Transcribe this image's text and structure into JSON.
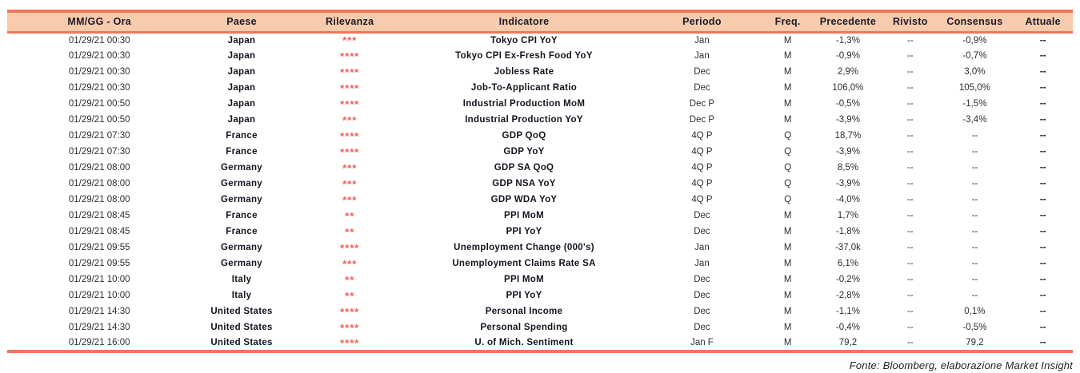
{
  "colors": {
    "border": "#f2765b",
    "header_bg": "#f8cbad",
    "star": "#f85c4f"
  },
  "table": {
    "columns": [
      {
        "key": "datetime",
        "label": "MM/GG - Ora"
      },
      {
        "key": "country",
        "label": "Paese"
      },
      {
        "key": "relevance",
        "label": "Rilevanza"
      },
      {
        "key": "indicator",
        "label": "Indicatore"
      },
      {
        "key": "period",
        "label": "Periodo"
      },
      {
        "key": "freq",
        "label": "Freq."
      },
      {
        "key": "previous",
        "label": "Precedente"
      },
      {
        "key": "revised",
        "label": "Rivisto"
      },
      {
        "key": "consensus",
        "label": "Consensus"
      },
      {
        "key": "actual",
        "label": "Attuale"
      }
    ],
    "rows": [
      {
        "datetime": "01/29/21 00:30",
        "country": "Japan",
        "relevance": "***",
        "indicator": "Tokyo CPI YoY",
        "period": "Jan",
        "freq": "M",
        "previous": "-1,3%",
        "revised": "--",
        "consensus": "-0,9%",
        "actual": "--"
      },
      {
        "datetime": "01/29/21 00:30",
        "country": "Japan",
        "relevance": "****",
        "indicator": "Tokyo CPI Ex-Fresh Food YoY",
        "period": "Jan",
        "freq": "M",
        "previous": "-0,9%",
        "revised": "--",
        "consensus": "-0,7%",
        "actual": "--"
      },
      {
        "datetime": "01/29/21 00:30",
        "country": "Japan",
        "relevance": "****",
        "indicator": "Jobless Rate",
        "period": "Dec",
        "freq": "M",
        "previous": "2,9%",
        "revised": "--",
        "consensus": "3,0%",
        "actual": "--"
      },
      {
        "datetime": "01/29/21 00:30",
        "country": "Japan",
        "relevance": "****",
        "indicator": "Job-To-Applicant Ratio",
        "period": "Dec",
        "freq": "M",
        "previous": "106,0%",
        "revised": "--",
        "consensus": "105,0%",
        "actual": "--"
      },
      {
        "datetime": "01/29/21 00:50",
        "country": "Japan",
        "relevance": "****",
        "indicator": "Industrial Production MoM",
        "period": "Dec P",
        "freq": "M",
        "previous": "-0,5%",
        "revised": "--",
        "consensus": "-1,5%",
        "actual": "--"
      },
      {
        "datetime": "01/29/21 00:50",
        "country": "Japan",
        "relevance": "***",
        "indicator": "Industrial Production YoY",
        "period": "Dec P",
        "freq": "M",
        "previous": "-3,9%",
        "revised": "--",
        "consensus": "-3,4%",
        "actual": "--"
      },
      {
        "datetime": "01/29/21 07:30",
        "country": "France",
        "relevance": "****",
        "indicator": "GDP QoQ",
        "period": "4Q P",
        "freq": "Q",
        "previous": "18,7%",
        "revised": "--",
        "consensus": "--",
        "actual": "--"
      },
      {
        "datetime": "01/29/21 07:30",
        "country": "France",
        "relevance": "****",
        "indicator": "GDP YoY",
        "period": "4Q P",
        "freq": "Q",
        "previous": "-3,9%",
        "revised": "--",
        "consensus": "--",
        "actual": "--"
      },
      {
        "datetime": "01/29/21 08:00",
        "country": "Germany",
        "relevance": "***",
        "indicator": "GDP SA QoQ",
        "period": "4Q P",
        "freq": "Q",
        "previous": "8,5%",
        "revised": "--",
        "consensus": "--",
        "actual": "--"
      },
      {
        "datetime": "01/29/21 08:00",
        "country": "Germany",
        "relevance": "***",
        "indicator": "GDP NSA YoY",
        "period": "4Q P",
        "freq": "Q",
        "previous": "-3,9%",
        "revised": "--",
        "consensus": "--",
        "actual": "--"
      },
      {
        "datetime": "01/29/21 08:00",
        "country": "Germany",
        "relevance": "***",
        "indicator": "GDP WDA YoY",
        "period": "4Q P",
        "freq": "Q",
        "previous": "-4,0%",
        "revised": "--",
        "consensus": "--",
        "actual": "--"
      },
      {
        "datetime": "01/29/21 08:45",
        "country": "France",
        "relevance": "**",
        "indicator": "PPI MoM",
        "period": "Dec",
        "freq": "M",
        "previous": "1,7%",
        "revised": "--",
        "consensus": "--",
        "actual": "--"
      },
      {
        "datetime": "01/29/21 08:45",
        "country": "France",
        "relevance": "**",
        "indicator": "PPI YoY",
        "period": "Dec",
        "freq": "M",
        "previous": "-1,8%",
        "revised": "--",
        "consensus": "--",
        "actual": "--"
      },
      {
        "datetime": "01/29/21 09:55",
        "country": "Germany",
        "relevance": "****",
        "indicator": "Unemployment Change (000's)",
        "period": "Jan",
        "freq": "M",
        "previous": "-37,0k",
        "revised": "--",
        "consensus": "--",
        "actual": "--"
      },
      {
        "datetime": "01/29/21 09:55",
        "country": "Germany",
        "relevance": "***",
        "indicator": "Unemployment Claims Rate SA",
        "period": "Jan",
        "freq": "M",
        "previous": "6,1%",
        "revised": "--",
        "consensus": "--",
        "actual": "--"
      },
      {
        "datetime": "01/29/21 10:00",
        "country": "Italy",
        "relevance": "**",
        "indicator": "PPI MoM",
        "period": "Dec",
        "freq": "M",
        "previous": "-0,2%",
        "revised": "--",
        "consensus": "--",
        "actual": "--"
      },
      {
        "datetime": "01/29/21 10:00",
        "country": "Italy",
        "relevance": "**",
        "indicator": "PPI YoY",
        "period": "Dec",
        "freq": "M",
        "previous": "-2,8%",
        "revised": "--",
        "consensus": "--",
        "actual": "--"
      },
      {
        "datetime": "01/29/21 14:30",
        "country": "United States",
        "relevance": "****",
        "indicator": "Personal Income",
        "period": "Dec",
        "freq": "M",
        "previous": "-1,1%",
        "revised": "--",
        "consensus": "0,1%",
        "actual": "--"
      },
      {
        "datetime": "01/29/21 14:30",
        "country": "United States",
        "relevance": "****",
        "indicator": "Personal Spending",
        "period": "Dec",
        "freq": "M",
        "previous": "-0,4%",
        "revised": "--",
        "consensus": "-0,5%",
        "actual": "--"
      },
      {
        "datetime": "01/29/21 16:00",
        "country": "United States",
        "relevance": "****",
        "indicator": "U. of Mich. Sentiment",
        "period": "Jan F",
        "freq": "M",
        "previous": "79,2",
        "revised": "--",
        "consensus": "79,2",
        "actual": "--"
      }
    ]
  },
  "footer": {
    "source": "Fonte: Bloomberg, elaborazione Market Insight"
  }
}
